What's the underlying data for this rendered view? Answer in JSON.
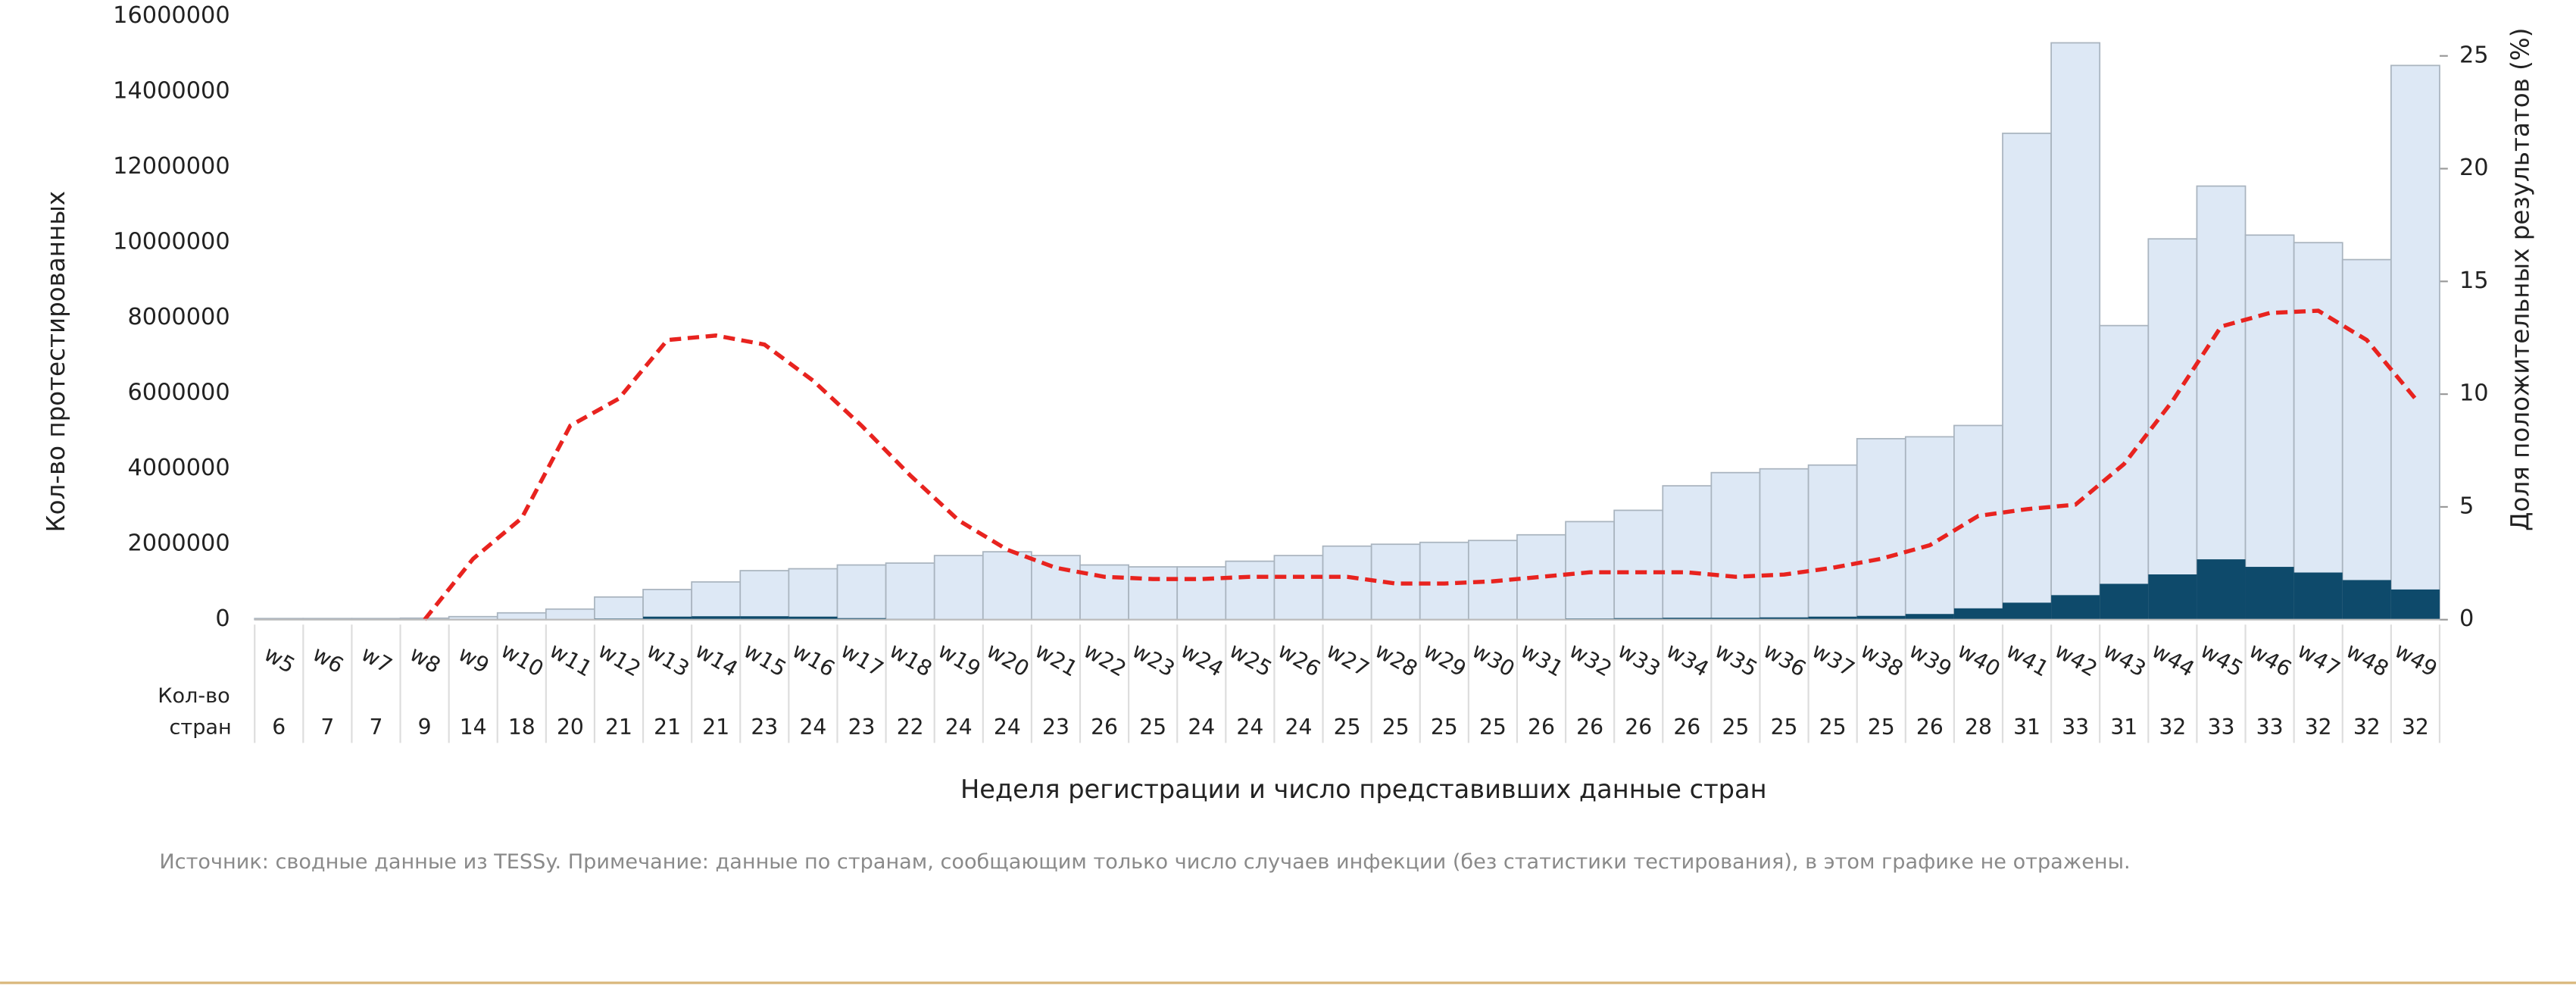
{
  "chart_data": {
    "type": "bar",
    "y_label": "Кол-во протестированных",
    "y2_label": "Доля положительных результатов (%)",
    "x_label": "Неделя регистрации и число представивших данные стран",
    "countries_label": [
      "Кол-во",
      "стран"
    ],
    "source": "Источник: сводные данные из  TESSy. Примечание: данные по странам, сообщающим только число случаев инфекции (без статистики тестирования), в этом графике не отражены.",
    "categories": [
      "w5",
      "w6",
      "w7",
      "w8",
      "w9",
      "w10",
      "w11",
      "w12",
      "w13",
      "w14",
      "w15",
      "w16",
      "w17",
      "w18",
      "w19",
      "w20",
      "w21",
      "w22",
      "w23",
      "w24",
      "w25",
      "w26",
      "w27",
      "w28",
      "w29",
      "w30",
      "w31",
      "w32",
      "w33",
      "w34",
      "w35",
      "w36",
      "w37",
      "w38",
      "w39",
      "w40",
      "w41",
      "w42",
      "w43",
      "w44",
      "w45",
      "w46",
      "w47",
      "w48",
      "w49"
    ],
    "countries": [
      6,
      7,
      7,
      9,
      14,
      18,
      20,
      21,
      21,
      21,
      23,
      24,
      23,
      22,
      24,
      24,
      23,
      26,
      25,
      24,
      24,
      24,
      25,
      25,
      25,
      25,
      26,
      26,
      26,
      26,
      25,
      25,
      25,
      25,
      26,
      28,
      31,
      33,
      31,
      32,
      33,
      33,
      32,
      32,
      32
    ],
    "series": [
      {
        "color": "#dde8f5",
        "values": [
          30000,
          30000,
          30000,
          40000,
          80000,
          180000,
          280000,
          600000,
          800000,
          1000000,
          1300000,
          1350000,
          1450000,
          1500000,
          1700000,
          1800000,
          1700000,
          1450000,
          1400000,
          1400000,
          1550000,
          1700000,
          1950000,
          2000000,
          2050000,
          2100000,
          2250000,
          2600000,
          2900000,
          3550000,
          3900000,
          4000000,
          4100000,
          4800000,
          4850000,
          5150000,
          12900000,
          15300000,
          7800000,
          10100000,
          11500000,
          10200000,
          10000000,
          9550000,
          14700000
        ]
      },
      {
        "color": "#0e4a6b",
        "values": [
          0,
          0,
          0,
          0,
          2000,
          5000,
          10000,
          30000,
          80000,
          90000,
          90000,
          80000,
          40000,
          20000,
          15000,
          10000,
          8000,
          6000,
          6000,
          6000,
          7000,
          8000,
          9000,
          9000,
          9000,
          10000,
          12000,
          30000,
          40000,
          50000,
          50000,
          60000,
          80000,
          100000,
          150000,
          300000,
          450000,
          650000,
          950000,
          1200000,
          1600000,
          1400000,
          1250000,
          1050000,
          800000
        ]
      },
      {
        "type": "line",
        "axis": "y2",
        "color": "#e8231f",
        "values": [
          null,
          null,
          null,
          0,
          2.7,
          4.5,
          8.6,
          9.8,
          12.4,
          12.6,
          12.2,
          10.6,
          8.6,
          6.4,
          4.4,
          3.1,
          2.3,
          1.9,
          1.8,
          1.8,
          1.9,
          1.9,
          1.9,
          1.6,
          1.6,
          1.7,
          1.9,
          2.1,
          2.1,
          2.1,
          1.9,
          2.0,
          2.3,
          2.7,
          3.3,
          4.6,
          4.9,
          5.1,
          6.9,
          9.7,
          13.0,
          13.6,
          13.7,
          12.4,
          9.8
        ]
      }
    ],
    "ylim": [
      0,
      16000000
    ],
    "yticks": [
      0,
      2000000,
      4000000,
      6000000,
      8000000,
      10000000,
      12000000,
      14000000,
      16000000
    ],
    "y2lim": [
      0,
      26.75
    ],
    "y2ticks": [
      0,
      5,
      10,
      15,
      20,
      25
    ]
  }
}
